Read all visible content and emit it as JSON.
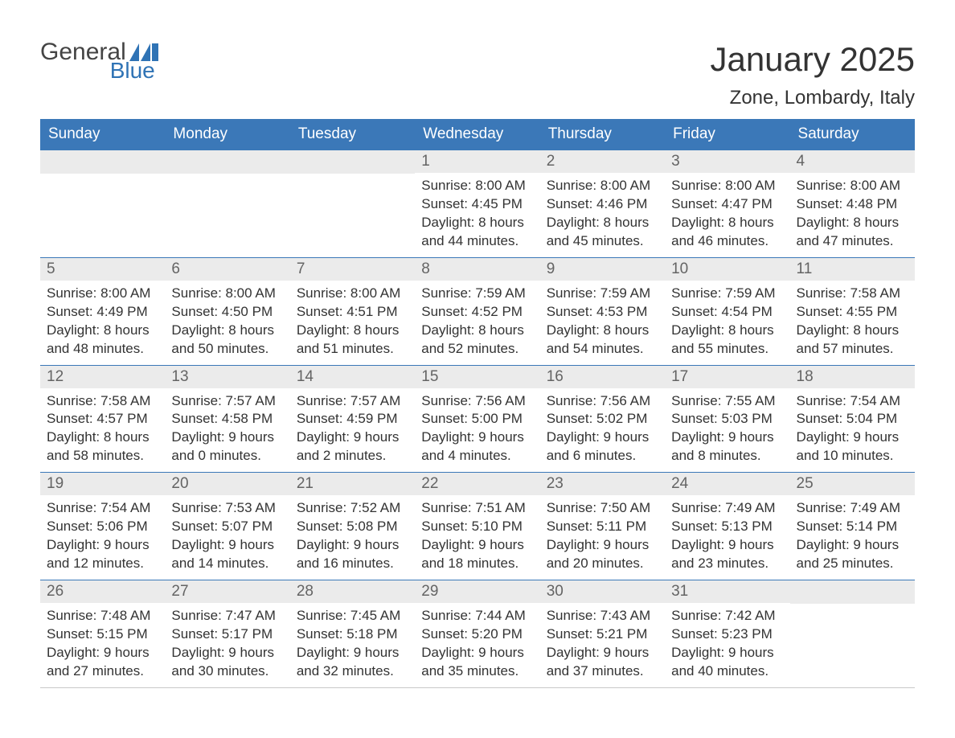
{
  "logo": {
    "text1": "General",
    "text2": "Blue",
    "flag_color": "#2f73b5"
  },
  "title": "January 2025",
  "location": "Zone, Lombardy, Italy",
  "colors": {
    "header_bg": "#3b78b8",
    "header_text": "#ffffff",
    "daynum_bg": "#ebebeb",
    "daynum_text": "#646464",
    "body_text": "#333333",
    "row_border": "#3b78b8"
  },
  "day_headers": [
    "Sunday",
    "Monday",
    "Tuesday",
    "Wednesday",
    "Thursday",
    "Friday",
    "Saturday"
  ],
  "weeks": [
    [
      null,
      null,
      null,
      {
        "n": "1",
        "sr": "Sunrise: 8:00 AM",
        "ss": "Sunset: 4:45 PM",
        "d1": "Daylight: 8 hours",
        "d2": "and 44 minutes."
      },
      {
        "n": "2",
        "sr": "Sunrise: 8:00 AM",
        "ss": "Sunset: 4:46 PM",
        "d1": "Daylight: 8 hours",
        "d2": "and 45 minutes."
      },
      {
        "n": "3",
        "sr": "Sunrise: 8:00 AM",
        "ss": "Sunset: 4:47 PM",
        "d1": "Daylight: 8 hours",
        "d2": "and 46 minutes."
      },
      {
        "n": "4",
        "sr": "Sunrise: 8:00 AM",
        "ss": "Sunset: 4:48 PM",
        "d1": "Daylight: 8 hours",
        "d2": "and 47 minutes."
      }
    ],
    [
      {
        "n": "5",
        "sr": "Sunrise: 8:00 AM",
        "ss": "Sunset: 4:49 PM",
        "d1": "Daylight: 8 hours",
        "d2": "and 48 minutes."
      },
      {
        "n": "6",
        "sr": "Sunrise: 8:00 AM",
        "ss": "Sunset: 4:50 PM",
        "d1": "Daylight: 8 hours",
        "d2": "and 50 minutes."
      },
      {
        "n": "7",
        "sr": "Sunrise: 8:00 AM",
        "ss": "Sunset: 4:51 PM",
        "d1": "Daylight: 8 hours",
        "d2": "and 51 minutes."
      },
      {
        "n": "8",
        "sr": "Sunrise: 7:59 AM",
        "ss": "Sunset: 4:52 PM",
        "d1": "Daylight: 8 hours",
        "d2": "and 52 minutes."
      },
      {
        "n": "9",
        "sr": "Sunrise: 7:59 AM",
        "ss": "Sunset: 4:53 PM",
        "d1": "Daylight: 8 hours",
        "d2": "and 54 minutes."
      },
      {
        "n": "10",
        "sr": "Sunrise: 7:59 AM",
        "ss": "Sunset: 4:54 PM",
        "d1": "Daylight: 8 hours",
        "d2": "and 55 minutes."
      },
      {
        "n": "11",
        "sr": "Sunrise: 7:58 AM",
        "ss": "Sunset: 4:55 PM",
        "d1": "Daylight: 8 hours",
        "d2": "and 57 minutes."
      }
    ],
    [
      {
        "n": "12",
        "sr": "Sunrise: 7:58 AM",
        "ss": "Sunset: 4:57 PM",
        "d1": "Daylight: 8 hours",
        "d2": "and 58 minutes."
      },
      {
        "n": "13",
        "sr": "Sunrise: 7:57 AM",
        "ss": "Sunset: 4:58 PM",
        "d1": "Daylight: 9 hours",
        "d2": "and 0 minutes."
      },
      {
        "n": "14",
        "sr": "Sunrise: 7:57 AM",
        "ss": "Sunset: 4:59 PM",
        "d1": "Daylight: 9 hours",
        "d2": "and 2 minutes."
      },
      {
        "n": "15",
        "sr": "Sunrise: 7:56 AM",
        "ss": "Sunset: 5:00 PM",
        "d1": "Daylight: 9 hours",
        "d2": "and 4 minutes."
      },
      {
        "n": "16",
        "sr": "Sunrise: 7:56 AM",
        "ss": "Sunset: 5:02 PM",
        "d1": "Daylight: 9 hours",
        "d2": "and 6 minutes."
      },
      {
        "n": "17",
        "sr": "Sunrise: 7:55 AM",
        "ss": "Sunset: 5:03 PM",
        "d1": "Daylight: 9 hours",
        "d2": "and 8 minutes."
      },
      {
        "n": "18",
        "sr": "Sunrise: 7:54 AM",
        "ss": "Sunset: 5:04 PM",
        "d1": "Daylight: 9 hours",
        "d2": "and 10 minutes."
      }
    ],
    [
      {
        "n": "19",
        "sr": "Sunrise: 7:54 AM",
        "ss": "Sunset: 5:06 PM",
        "d1": "Daylight: 9 hours",
        "d2": "and 12 minutes."
      },
      {
        "n": "20",
        "sr": "Sunrise: 7:53 AM",
        "ss": "Sunset: 5:07 PM",
        "d1": "Daylight: 9 hours",
        "d2": "and 14 minutes."
      },
      {
        "n": "21",
        "sr": "Sunrise: 7:52 AM",
        "ss": "Sunset: 5:08 PM",
        "d1": "Daylight: 9 hours",
        "d2": "and 16 minutes."
      },
      {
        "n": "22",
        "sr": "Sunrise: 7:51 AM",
        "ss": "Sunset: 5:10 PM",
        "d1": "Daylight: 9 hours",
        "d2": "and 18 minutes."
      },
      {
        "n": "23",
        "sr": "Sunrise: 7:50 AM",
        "ss": "Sunset: 5:11 PM",
        "d1": "Daylight: 9 hours",
        "d2": "and 20 minutes."
      },
      {
        "n": "24",
        "sr": "Sunrise: 7:49 AM",
        "ss": "Sunset: 5:13 PM",
        "d1": "Daylight: 9 hours",
        "d2": "and 23 minutes."
      },
      {
        "n": "25",
        "sr": "Sunrise: 7:49 AM",
        "ss": "Sunset: 5:14 PM",
        "d1": "Daylight: 9 hours",
        "d2": "and 25 minutes."
      }
    ],
    [
      {
        "n": "26",
        "sr": "Sunrise: 7:48 AM",
        "ss": "Sunset: 5:15 PM",
        "d1": "Daylight: 9 hours",
        "d2": "and 27 minutes."
      },
      {
        "n": "27",
        "sr": "Sunrise: 7:47 AM",
        "ss": "Sunset: 5:17 PM",
        "d1": "Daylight: 9 hours",
        "d2": "and 30 minutes."
      },
      {
        "n": "28",
        "sr": "Sunrise: 7:45 AM",
        "ss": "Sunset: 5:18 PM",
        "d1": "Daylight: 9 hours",
        "d2": "and 32 minutes."
      },
      {
        "n": "29",
        "sr": "Sunrise: 7:44 AM",
        "ss": "Sunset: 5:20 PM",
        "d1": "Daylight: 9 hours",
        "d2": "and 35 minutes."
      },
      {
        "n": "30",
        "sr": "Sunrise: 7:43 AM",
        "ss": "Sunset: 5:21 PM",
        "d1": "Daylight: 9 hours",
        "d2": "and 37 minutes."
      },
      {
        "n": "31",
        "sr": "Sunrise: 7:42 AM",
        "ss": "Sunset: 5:23 PM",
        "d1": "Daylight: 9 hours",
        "d2": "and 40 minutes."
      },
      null
    ]
  ]
}
